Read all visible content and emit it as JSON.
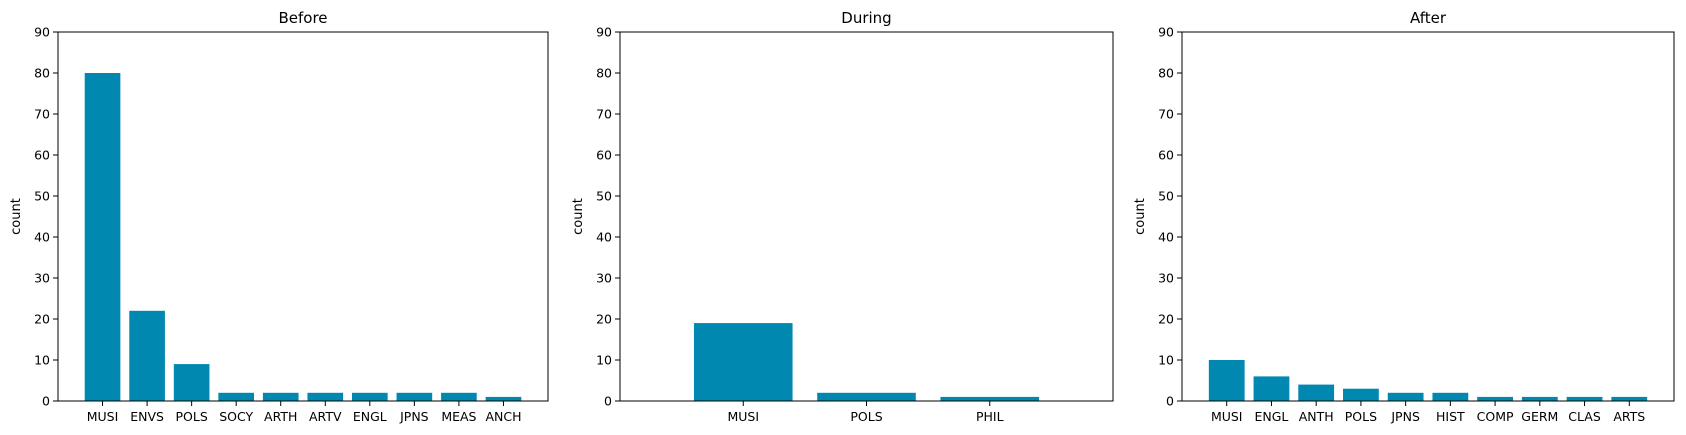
{
  "chart_data": [
    {
      "type": "bar",
      "title": "Before",
      "ylabel": "count",
      "xlabel": "",
      "ylim": [
        0,
        90
      ],
      "yticks": [
        0,
        10,
        20,
        30,
        40,
        50,
        60,
        70,
        80,
        90
      ],
      "categories": [
        "MUSI",
        "ENVS",
        "POLS",
        "SOCY",
        "ARTH",
        "ARTV",
        "ENGL",
        "JPNS",
        "MEAS",
        "ANCH"
      ],
      "values": [
        80,
        22,
        9,
        2,
        2,
        2,
        2,
        2,
        2,
        1
      ],
      "color": "#0088b0"
    },
    {
      "type": "bar",
      "title": "During",
      "ylabel": "count",
      "xlabel": "",
      "ylim": [
        0,
        90
      ],
      "yticks": [
        0,
        10,
        20,
        30,
        40,
        50,
        60,
        70,
        80,
        90
      ],
      "categories": [
        "MUSI",
        "POLS",
        "PHIL"
      ],
      "values": [
        19,
        2,
        1
      ],
      "color": "#0088b0"
    },
    {
      "type": "bar",
      "title": "After",
      "ylabel": "count",
      "xlabel": "",
      "ylim": [
        0,
        90
      ],
      "yticks": [
        0,
        10,
        20,
        30,
        40,
        50,
        60,
        70,
        80,
        90
      ],
      "categories": [
        "MUSI",
        "ENGL",
        "ANTH",
        "POLS",
        "JPNS",
        "HIST",
        "COMP",
        "GERM",
        "CLAS",
        "ARTS"
      ],
      "values": [
        10,
        6,
        4,
        3,
        2,
        2,
        1,
        1,
        1,
        1
      ],
      "color": "#0088b0"
    }
  ]
}
